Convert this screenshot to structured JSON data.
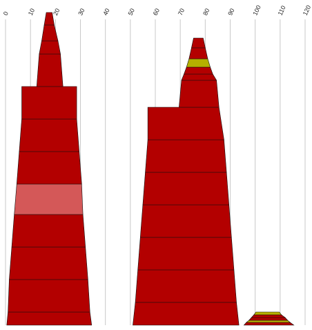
{
  "chart_data": {
    "type": "stacked-shape",
    "x_ticks": [
      0,
      10,
      20,
      30,
      40,
      50,
      60,
      70,
      80,
      90,
      100,
      110,
      120
    ],
    "xlim": [
      0,
      120
    ],
    "grid": true,
    "colors": {
      "normal": "#b30000",
      "highlight": "#d45858",
      "accent": "#b5b000"
    },
    "stacks": [
      {
        "name": "",
        "layers": [
          {
            "x1": 0.5,
            "x2": 34.5,
            "state": "normal"
          },
          {
            "x1": 1.0,
            "x2": 33.8,
            "state": "normal"
          },
          {
            "x1": 1.5,
            "x2": 33.0,
            "state": "normal"
          },
          {
            "x1": 2.5,
            "x2": 32.0,
            "state": "normal"
          },
          {
            "x1": 3.5,
            "x2": 31.0,
            "state": "highlight"
          },
          {
            "x1": 4.5,
            "x2": 30.5,
            "state": "normal"
          },
          {
            "x1": 5.5,
            "x2": 29.5,
            "state": "normal"
          },
          {
            "x1": 6.5,
            "x2": 28.5,
            "state": "normal"
          },
          {
            "x1": 12.5,
            "x2": 23.0,
            "state": "normal"
          },
          {
            "x1": 13.5,
            "x2": 22.0,
            "state": "normal"
          },
          {
            "x1": 14.5,
            "x2": 21.0,
            "state": "normal"
          },
          {
            "x1": 15.5,
            "x2": 19.5,
            "state": "normal"
          }
        ]
      },
      {
        "name": "",
        "layers": [
          {
            "x1": 51.0,
            "x2": 93.5,
            "state": "normal"
          },
          {
            "x1": 52.0,
            "x2": 92.5,
            "state": "normal"
          },
          {
            "x1": 53.0,
            "x2": 91.5,
            "state": "normal"
          },
          {
            "x1": 54.0,
            "x2": 90.5,
            "state": "normal"
          },
          {
            "x1": 55.0,
            "x2": 89.5,
            "state": "normal"
          },
          {
            "x1": 56.0,
            "x2": 88.5,
            "state": "normal"
          },
          {
            "x1": 57.0,
            "x2": 87.5,
            "state": "normal"
          },
          {
            "x1": 69.5,
            "x2": 85.5,
            "state": "normal"
          },
          {
            "x1": 70.5,
            "x2": 84.5,
            "state": "normal"
          },
          {
            "x1": 71.5,
            "x2": 83.0,
            "state": "normal"
          },
          {
            "x1": 72.5,
            "x2": 82.0,
            "state": "accent"
          },
          {
            "x1": 73.5,
            "x2": 81.0,
            "state": "normal"
          },
          {
            "x1": 74.5,
            "x2": 80.0,
            "state": "normal"
          }
        ]
      },
      {
        "name": "",
        "layers": [
          {
            "x1": 95.5,
            "x2": 115.5,
            "state": "normal"
          },
          {
            "x1": 96.5,
            "x2": 114.0,
            "state": "accent"
          },
          {
            "x1": 97.5,
            "x2": 113.0,
            "state": "normal"
          },
          {
            "x1": 98.5,
            "x2": 112.0,
            "state": "normal"
          },
          {
            "x1": 99.5,
            "x2": 110.5,
            "state": "accent"
          }
        ]
      }
    ]
  }
}
